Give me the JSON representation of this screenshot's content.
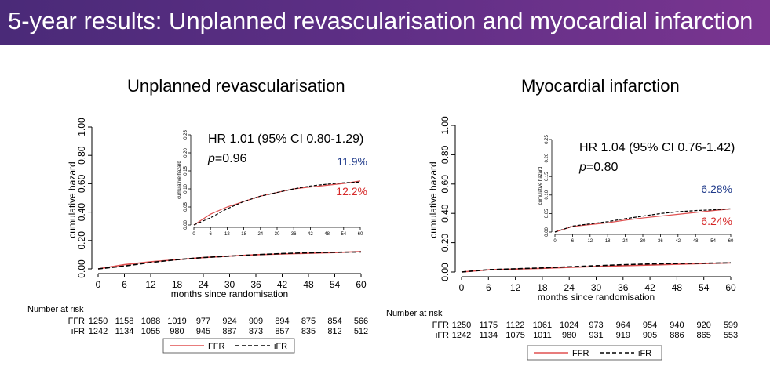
{
  "slide_title": "5-year results: Unplanned revascularisation and myocardial infarction",
  "chart_data": [
    {
      "type": "line",
      "title": "Unplanned revascularisation",
      "xlabel": "months since randomisation",
      "ylabel": "cumulative hazard",
      "xlim": [
        0,
        60
      ],
      "ylim": [
        0,
        1
      ],
      "x_ticks": [
        "0",
        "6",
        "12",
        "18",
        "24",
        "30",
        "36",
        "42",
        "48",
        "54",
        "60"
      ],
      "y_ticks": [
        "0.00",
        "0.20",
        "0.40",
        "0.60",
        "0.80",
        "1.00"
      ],
      "series": [
        {
          "name": "FFR",
          "color": "#e05050",
          "dash": "solid",
          "x": [
            0,
            6,
            12,
            18,
            24,
            30,
            36,
            42,
            48,
            54,
            60
          ],
          "values": [
            0.0,
            0.03,
            0.05,
            0.065,
            0.08,
            0.09,
            0.1,
            0.105,
            0.11,
            0.115,
            0.122
          ]
        },
        {
          "name": "iFR",
          "color": "#000000",
          "dash": "dashed",
          "x": [
            0,
            6,
            12,
            18,
            24,
            30,
            36,
            42,
            48,
            54,
            60
          ],
          "values": [
            0.0,
            0.02,
            0.045,
            0.065,
            0.08,
            0.09,
            0.1,
            0.108,
            0.113,
            0.117,
            0.119
          ]
        }
      ],
      "inset": {
        "ylim": [
          0,
          0.25
        ],
        "y_ticks": [
          "0.00",
          "0.05",
          "0.10",
          "0.15",
          "0.20",
          "0.25"
        ],
        "x_ticks": [
          "0",
          "6",
          "12",
          "18",
          "24",
          "30",
          "36",
          "42",
          "48",
          "54",
          "60"
        ],
        "ylabel": "cumulative hazard",
        "hr_text": "HR 1.01 (95% CI 0.80-1.29)",
        "p_label": "p",
        "p_value": "=0.96",
        "label_ifr": "11.9%",
        "label_ffr": "12.2%"
      },
      "risk_table": {
        "header": "Number at risk",
        "rows": [
          {
            "name": "FFR",
            "values": [
              "1250",
              "1158",
              "1088",
              "1019",
              "977",
              "924",
              "909",
              "894",
              "875",
              "854",
              "566"
            ]
          },
          {
            "name": "iFR",
            "values": [
              "1242",
              "1134",
              "1055",
              "980",
              "945",
              "887",
              "873",
              "857",
              "835",
              "812",
              "512"
            ]
          }
        ]
      },
      "legend": [
        {
          "name": "FFR"
        },
        {
          "name": "iFR"
        }
      ],
      "legend_position": "bottom"
    },
    {
      "type": "line",
      "title": "Myocardial infarction",
      "xlabel": "months since randomisation",
      "ylabel": "cumulative hazard",
      "xlim": [
        0,
        60
      ],
      "ylim": [
        0,
        1
      ],
      "x_ticks": [
        "0",
        "6",
        "12",
        "18",
        "24",
        "30",
        "36",
        "42",
        "48",
        "54",
        "60"
      ],
      "y_ticks": [
        "0.00",
        "0.20",
        "0.40",
        "0.60",
        "0.80",
        "1.00"
      ],
      "series": [
        {
          "name": "FFR",
          "color": "#e05050",
          "dash": "solid",
          "x": [
            0,
            6,
            12,
            18,
            24,
            30,
            36,
            42,
            48,
            54,
            60
          ],
          "values": [
            0.0,
            0.015,
            0.02,
            0.025,
            0.032,
            0.038,
            0.043,
            0.048,
            0.053,
            0.058,
            0.0624
          ]
        },
        {
          "name": "iFR",
          "color": "#000000",
          "dash": "dashed",
          "x": [
            0,
            6,
            12,
            18,
            24,
            30,
            36,
            42,
            48,
            54,
            60
          ],
          "values": [
            0.0,
            0.016,
            0.022,
            0.028,
            0.036,
            0.043,
            0.05,
            0.055,
            0.058,
            0.06,
            0.0628
          ]
        }
      ],
      "inset": {
        "ylim": [
          0,
          0.25
        ],
        "y_ticks": [
          "0.00",
          "0.05",
          "0.10",
          "0.15",
          "0.20",
          "0.25"
        ],
        "x_ticks": [
          "0",
          "6",
          "12",
          "18",
          "24",
          "30",
          "36",
          "42",
          "48",
          "54",
          "60"
        ],
        "ylabel": "cumulative hazard",
        "hr_text": "HR 1.04 (95% CI 0.76-1.42)",
        "p_label": "p",
        "p_value": "=0.80",
        "label_ifr": "6.28%",
        "label_ffr": "6.24%"
      },
      "risk_table": {
        "header": "Number at risk",
        "rows": [
          {
            "name": "FFR",
            "values": [
              "1250",
              "1175",
              "1122",
              "1061",
              "1024",
              "973",
              "964",
              "954",
              "940",
              "920",
              "599"
            ]
          },
          {
            "name": "iFR",
            "values": [
              "1242",
              "1134",
              "1075",
              "1011",
              "980",
              "931",
              "919",
              "905",
              "886",
              "865",
              "553"
            ]
          }
        ]
      },
      "legend": [
        {
          "name": "FFR"
        },
        {
          "name": "iFR"
        }
      ],
      "legend_position": "bottom"
    }
  ]
}
